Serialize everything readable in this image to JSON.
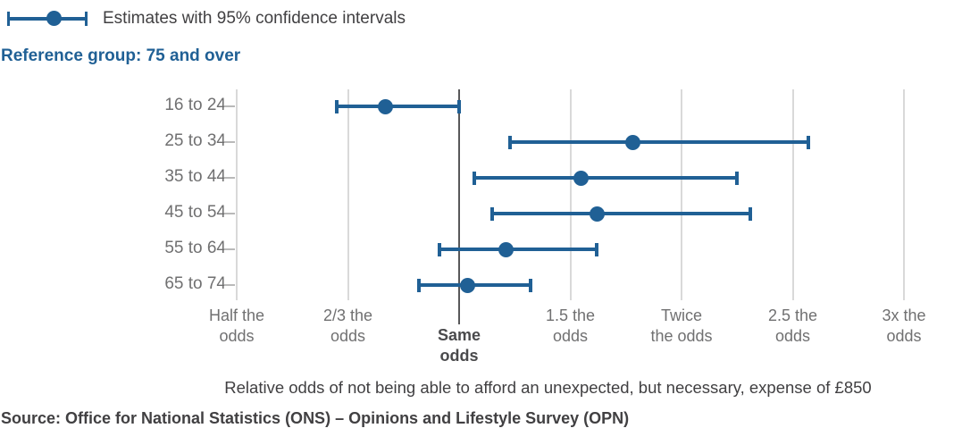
{
  "legend": {
    "label": "Estimates with 95% confidence intervals"
  },
  "reference_note": "Reference group: 75 and over",
  "axis_title": "Relative odds of not being able to afford an unexpected, but necessary, expense of £850",
  "source": "Source: Office for National Statistics (ONS) – Opinions and Lifestyle Survey (OPN)",
  "colors": {
    "accent_blue": "#206095",
    "text_dark": "#414042",
    "text_gray": "#707071",
    "gridline": "#d9d9d9",
    "baseline_dark": "#58585a",
    "tick_dash": "#b9b9b9"
  },
  "chart_data": {
    "type": "scatter",
    "subtype": "dot-and-whisker-forest-plot",
    "title": "",
    "xlabel": "Relative odds of not being able to afford an unexpected, but necessary, expense of £850",
    "ylabel": "",
    "legend_entries": [
      "Estimates with 95% confidence intervals"
    ],
    "legend_position": "top-left",
    "reference_group": "75 and over",
    "grid": "vertical-only",
    "xlim": [
      0.5,
      3
    ],
    "x_scale_note": "ticks evenly spaced, values interpolated piecewise between ticks",
    "x_ticks": [
      {
        "value": 0.5,
        "label": "Half the\nodds"
      },
      {
        "value": 0.6667,
        "label": "2/3 the\nodds"
      },
      {
        "value": 1,
        "label": "Same\nodds",
        "emphasis": true
      },
      {
        "value": 1.5,
        "label": "1.5 the\nodds"
      },
      {
        "value": 2,
        "label": "Twice\nthe odds"
      },
      {
        "value": 2.5,
        "label": "2.5 the\nodds"
      },
      {
        "value": 3,
        "label": "3x the\nodds"
      }
    ],
    "categories": [
      "16 to 24",
      "25 to 34",
      "35 to 44",
      "45 to 54",
      "55 to 64",
      "65 to 74"
    ],
    "series": [
      {
        "name": "Estimates with 95% confidence intervals",
        "points": [
          {
            "category": "16 to 24",
            "estimate": 0.78,
            "ci_low": 0.65,
            "ci_high": 1.0
          },
          {
            "category": "25 to 34",
            "estimate": 1.78,
            "ci_low": 1.23,
            "ci_high": 2.57
          },
          {
            "category": "35 to 44",
            "estimate": 1.55,
            "ci_low": 1.07,
            "ci_high": 2.25
          },
          {
            "category": "45 to 54",
            "estimate": 1.62,
            "ci_low": 1.15,
            "ci_high": 2.31
          },
          {
            "category": "55 to 64",
            "estimate": 1.21,
            "ci_low": 0.94,
            "ci_high": 1.62
          },
          {
            "category": "65 to 74",
            "estimate": 1.04,
            "ci_low": 0.88,
            "ci_high": 1.32
          }
        ]
      }
    ]
  }
}
